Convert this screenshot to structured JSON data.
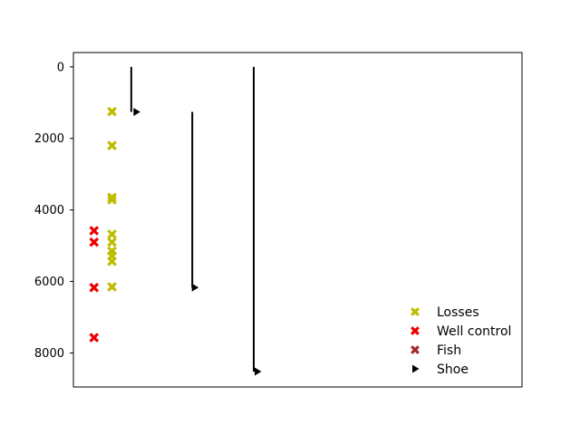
{
  "chart_data": {
    "type": "scatter",
    "ylim": [
      8950,
      -400
    ],
    "xlim": [
      0,
      1
    ],
    "y_inverted": true,
    "yticks": [
      0,
      2000,
      4000,
      6000,
      8000
    ],
    "ytick_labels": [
      "0",
      "2000",
      "4000",
      "6000",
      "8000"
    ],
    "xticks": [],
    "grid": false,
    "legend_position": "lower-right",
    "series": [
      {
        "name": "Losses",
        "marker": "X",
        "color": "#bdbd00",
        "points": [
          {
            "x": 0.086,
            "y": 1250
          },
          {
            "x": 0.086,
            "y": 2200
          },
          {
            "x": 0.086,
            "y": 3650
          },
          {
            "x": 0.086,
            "y": 3720
          },
          {
            "x": 0.086,
            "y": 4680
          },
          {
            "x": 0.086,
            "y": 4900
          },
          {
            "x": 0.086,
            "y": 5150
          },
          {
            "x": 0.086,
            "y": 5280
          },
          {
            "x": 0.086,
            "y": 5440
          },
          {
            "x": 0.086,
            "y": 6150
          }
        ]
      },
      {
        "name": "Well control",
        "marker": "X",
        "color": "#ee0000",
        "points": [
          {
            "x": 0.046,
            "y": 4580
          },
          {
            "x": 0.046,
            "y": 4900
          },
          {
            "x": 0.046,
            "y": 6170
          },
          {
            "x": 0.046,
            "y": 7570
          }
        ]
      },
      {
        "name": "Fish",
        "marker": "X",
        "color": "#a52a2a",
        "points": []
      },
      {
        "name": "Shoe",
        "marker": ">",
        "color": "#000000",
        "points": [
          {
            "x": 0.14,
            "y": 1260
          },
          {
            "x": 0.27,
            "y": 6170
          },
          {
            "x": 0.41,
            "y": 8520
          }
        ]
      }
    ],
    "casing_strings": [
      {
        "x": 0.129,
        "top": 0,
        "bottom": 1260
      },
      {
        "x": 0.265,
        "top": 1260,
        "bottom": 6170
      },
      {
        "x": 0.402,
        "top": 0,
        "bottom": 8520
      }
    ]
  }
}
